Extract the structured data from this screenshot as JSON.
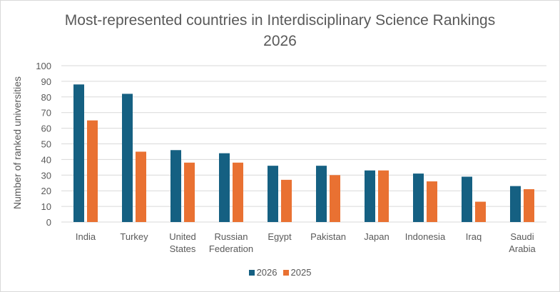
{
  "chart_data": {
    "type": "bar",
    "title": "Most-represented countries in Interdisciplinary Science Rankings 2026",
    "title_lines": [
      "Most-represented countries in Interdisciplinary Science Rankings",
      "2026"
    ],
    "xlabel": "",
    "ylabel": "Number of ranked universities",
    "ylim": [
      0,
      100
    ],
    "yticks": [
      0,
      10,
      20,
      30,
      40,
      50,
      60,
      70,
      80,
      90,
      100
    ],
    "grid": true,
    "legend_position": "bottom",
    "categories": [
      "India",
      "Turkey",
      "United States",
      "Russian Federation",
      "Egypt",
      "Pakistan",
      "Japan",
      "Indonesia",
      "Iraq",
      "Saudi Arabia"
    ],
    "category_lines": [
      [
        "India"
      ],
      [
        "Turkey"
      ],
      [
        "United",
        "States"
      ],
      [
        "Russian",
        "Federation"
      ],
      [
        "Egypt"
      ],
      [
        "Pakistan"
      ],
      [
        "Japan"
      ],
      [
        "Indonesia"
      ],
      [
        "Iraq"
      ],
      [
        "Saudi",
        "Arabia"
      ]
    ],
    "series": [
      {
        "name": "2026",
        "color": "#156082",
        "values": [
          88,
          82,
          46,
          44,
          36,
          36,
          33,
          31,
          29,
          23
        ]
      },
      {
        "name": "2025",
        "color": "#E97132",
        "values": [
          65,
          45,
          38,
          38,
          27,
          30,
          33,
          26,
          13,
          21
        ]
      }
    ]
  }
}
